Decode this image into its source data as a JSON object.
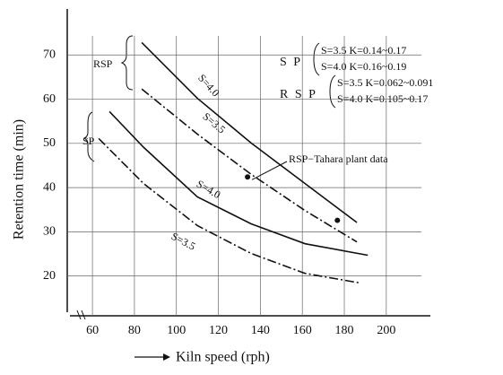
{
  "chart_data": {
    "type": "line",
    "x_label": "Kiln speed (rph)",
    "y_label": "Retention time (min)",
    "xlim": [
      48,
      221
    ],
    "ylim": [
      11,
      80
    ],
    "xticks": [
      60,
      80,
      100,
      120,
      140,
      160,
      180,
      200
    ],
    "yticks": [
      20,
      30,
      40,
      50,
      60,
      70
    ],
    "grid": true,
    "color": "#111111",
    "series": [
      {
        "name": "S=4.0",
        "group": "RSP",
        "style": "solid",
        "x": [
          83.5,
          110,
          135.6,
          161.3,
          186
        ],
        "values": [
          72.8,
          60.2,
          50.1,
          40.9,
          32.1
        ]
      },
      {
        "name": "S=3.5",
        "group": "RSP",
        "style": "dashdot",
        "x": [
          83.5,
          110,
          135.6,
          161.3,
          186
        ],
        "values": [
          62.3,
          52.1,
          43.0,
          34.8,
          27.7
        ]
      },
      {
        "name": "S=4.0",
        "group": "SP",
        "style": "solid",
        "x": [
          68.1,
          84.4,
          110,
          135.6,
          161.3,
          191.2
        ],
        "values": [
          57.2,
          49.1,
          37.9,
          31.8,
          27.3,
          24.7
        ]
      },
      {
        "name": "S=3.5",
        "group": "SP",
        "style": "dashdot",
        "x": [
          63,
          84.4,
          110,
          135.6,
          161.3,
          187.8
        ],
        "values": [
          51.1,
          40.9,
          31.4,
          25.1,
          20.6,
          18.4
        ]
      }
    ],
    "points": {
      "name": "RSP−Tahara plant data",
      "x": [
        133.9,
        176.7
      ],
      "values": [
        42.4,
        32.6
      ]
    },
    "legend": [
      {
        "label": "S P",
        "lines": [
          "S=3.5  K=0.14~0.17",
          "S=4.0  K=0.16~0.19"
        ]
      },
      {
        "label": "R S P",
        "lines": [
          "S=3.5  K=0.062~0.091",
          "S=4.0  K=0.105~0.17"
        ]
      }
    ]
  }
}
